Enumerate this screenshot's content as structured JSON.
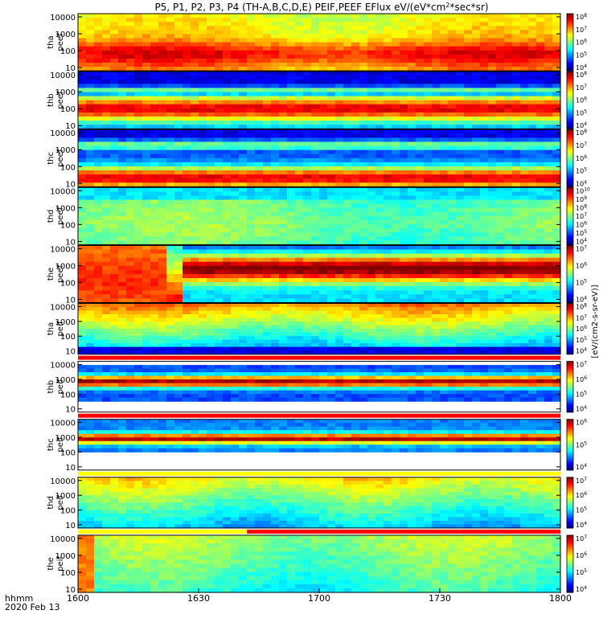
{
  "chart_data": {
    "type": "heatmap",
    "title": "P5, P1, P2, P3, P4 (TH-A,B,C,D,E) PEIF,PEEF EFlux eV/(eV*cm^2*sec*sr)",
    "title_parts": {
      "prefix": "P5, P1, P2, P3, P4 (TH-A,B,C,D,E) PEIF,PEEF EFlux eV/(eV*cm",
      "sup": "2",
      "suffix": "*sec*sr)"
    },
    "xlabel": "hhmm",
    "date_label": "2020 Feb 13",
    "x_ticks": [
      "1600",
      "1630",
      "1700",
      "1730",
      "1800"
    ],
    "colorbar_label": "[eV/(cm2-s-sr-eV)]",
    "panels": [
      {
        "probe": "tha",
        "product": "peef",
        "y_ticks": [
          "10000",
          "1000",
          "100",
          "10"
        ],
        "cbar_ticks": [
          "8",
          "7",
          "6",
          "5",
          "4"
        ],
        "top_strip": null,
        "bottom_strip": null
      },
      {
        "probe": "thb",
        "product": "peef",
        "y_ticks": [
          "10000",
          "1000",
          "100",
          "10"
        ],
        "cbar_ticks": [
          "8",
          "7",
          "6",
          "5",
          "4"
        ],
        "top_strip": null,
        "bottom_strip": null
      },
      {
        "probe": "thc",
        "product": "peef",
        "y_ticks": [
          "10000",
          "1000",
          "100",
          "10"
        ],
        "cbar_ticks": [
          "8",
          "7",
          "6",
          "5",
          "4"
        ],
        "top_strip": null,
        "bottom_strip": null
      },
      {
        "probe": "thd",
        "product": "peef",
        "y_ticks": [
          "10000",
          "1000",
          "100",
          "10"
        ],
        "cbar_ticks": [
          "10",
          "9",
          "8",
          "7",
          "6",
          "5",
          "4"
        ],
        "top_strip": null,
        "bottom_strip": null
      },
      {
        "probe": "the",
        "product": "peef",
        "y_ticks": [
          "10000",
          "1000",
          "100",
          "10"
        ],
        "cbar_ticks": [
          "7",
          "6",
          "5",
          "4"
        ],
        "top_strip": null,
        "bottom_strip": null
      },
      {
        "probe": "tha",
        "product": "peif",
        "y_ticks": [
          "10000",
          "1000",
          "100",
          "10"
        ],
        "cbar_ticks": [
          "8",
          "7",
          "6",
          "5",
          "4"
        ],
        "top_strip": null,
        "bottom_strip": "red"
      },
      {
        "probe": "thb",
        "product": "peif",
        "y_ticks": [
          "10000",
          "1000",
          "100",
          "10"
        ],
        "cbar_ticks": [
          "7",
          "6",
          "5",
          "4"
        ],
        "top_strip": null,
        "bottom_strip": "red"
      },
      {
        "probe": "thc",
        "product": "peif",
        "y_ticks": [
          "10000",
          "1000",
          "100",
          "10"
        ],
        "cbar_ticks": [
          "6",
          "5",
          "4"
        ],
        "top_strip": null,
        "bottom_strip": "yellow"
      },
      {
        "probe": "thd",
        "product": "peif",
        "y_ticks": [
          "10000",
          "1000",
          "100",
          "10"
        ],
        "cbar_ticks": [
          "7",
          "6",
          "5",
          "4"
        ],
        "top_strip": null,
        "bottom_strip": "yellow-red"
      },
      {
        "probe": "the",
        "product": "peif",
        "y_ticks": [
          "10000",
          "1000",
          "100",
          "10"
        ],
        "cbar_ticks": [
          "7",
          "6",
          "5",
          "4"
        ],
        "top_strip": null,
        "bottom_strip": null
      }
    ],
    "colorbar_base": "10",
    "colors": {
      "axis": "#000000",
      "background": "#ffffff"
    }
  }
}
